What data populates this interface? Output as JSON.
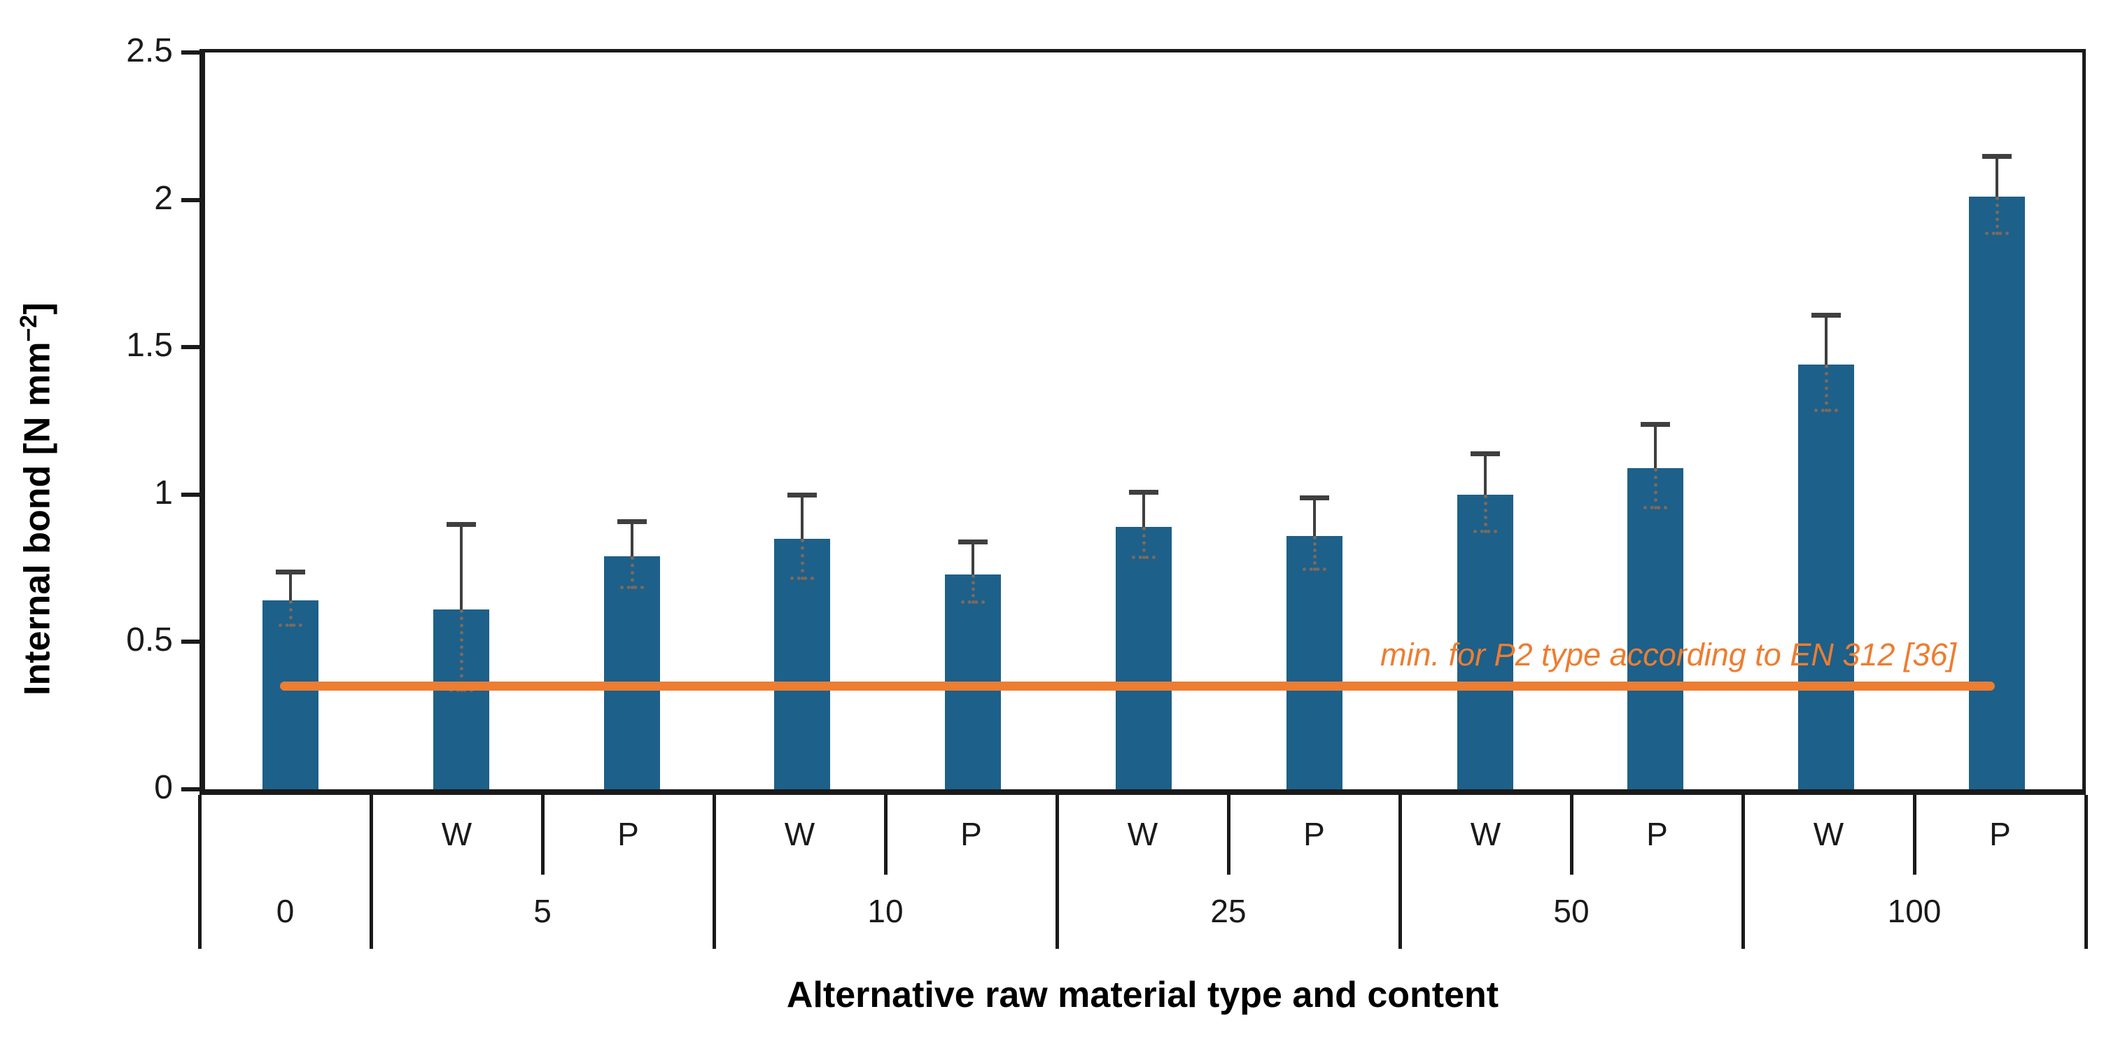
{
  "chart_data": {
    "type": "bar",
    "title": "",
    "xlabel": "Alternative raw material type and content",
    "ylabel_parts": {
      "pre": "Internal bond [N mm",
      "sup": "−2",
      "post": "]"
    },
    "ylim": [
      0,
      2.5
    ],
    "y_ticks": [
      0,
      0.5,
      1,
      1.5,
      2,
      2.5
    ],
    "y_tick_labels": [
      "0",
      "0.5",
      "1",
      "1.5",
      "2",
      "2.5"
    ],
    "grid": false,
    "legend": "none",
    "bar_color": "#1d6089",
    "error_color": "#3f3f3f",
    "error_inner_color": "#7a6a5d",
    "reference_line": {
      "value": 0.35,
      "color": "#ed7d31",
      "label": "min. for P2 type according to EN 312 [36]"
    },
    "groups": [
      {
        "label": "0",
        "bars": [
          {
            "sub": "",
            "value": 0.64,
            "error": 0.09
          }
        ]
      },
      {
        "label": "5",
        "bars": [
          {
            "sub": "W",
            "value": 0.61,
            "error": 0.28
          },
          {
            "sub": "P",
            "value": 0.79,
            "error": 0.11
          }
        ]
      },
      {
        "label": "10",
        "bars": [
          {
            "sub": "W",
            "value": 0.85,
            "error": 0.14
          },
          {
            "sub": "P",
            "value": 0.73,
            "error": 0.1
          }
        ]
      },
      {
        "label": "25",
        "bars": [
          {
            "sub": "W",
            "value": 0.89,
            "error": 0.11
          },
          {
            "sub": "P",
            "value": 0.86,
            "error": 0.12
          }
        ]
      },
      {
        "label": "50",
        "bars": [
          {
            "sub": "W",
            "value": 1.0,
            "error": 0.13
          },
          {
            "sub": "P",
            "value": 1.09,
            "error": 0.14
          }
        ]
      },
      {
        "label": "100",
        "bars": [
          {
            "sub": "W",
            "value": 1.44,
            "error": 0.16
          },
          {
            "sub": "P",
            "value": 2.01,
            "error": 0.13
          }
        ]
      }
    ]
  }
}
